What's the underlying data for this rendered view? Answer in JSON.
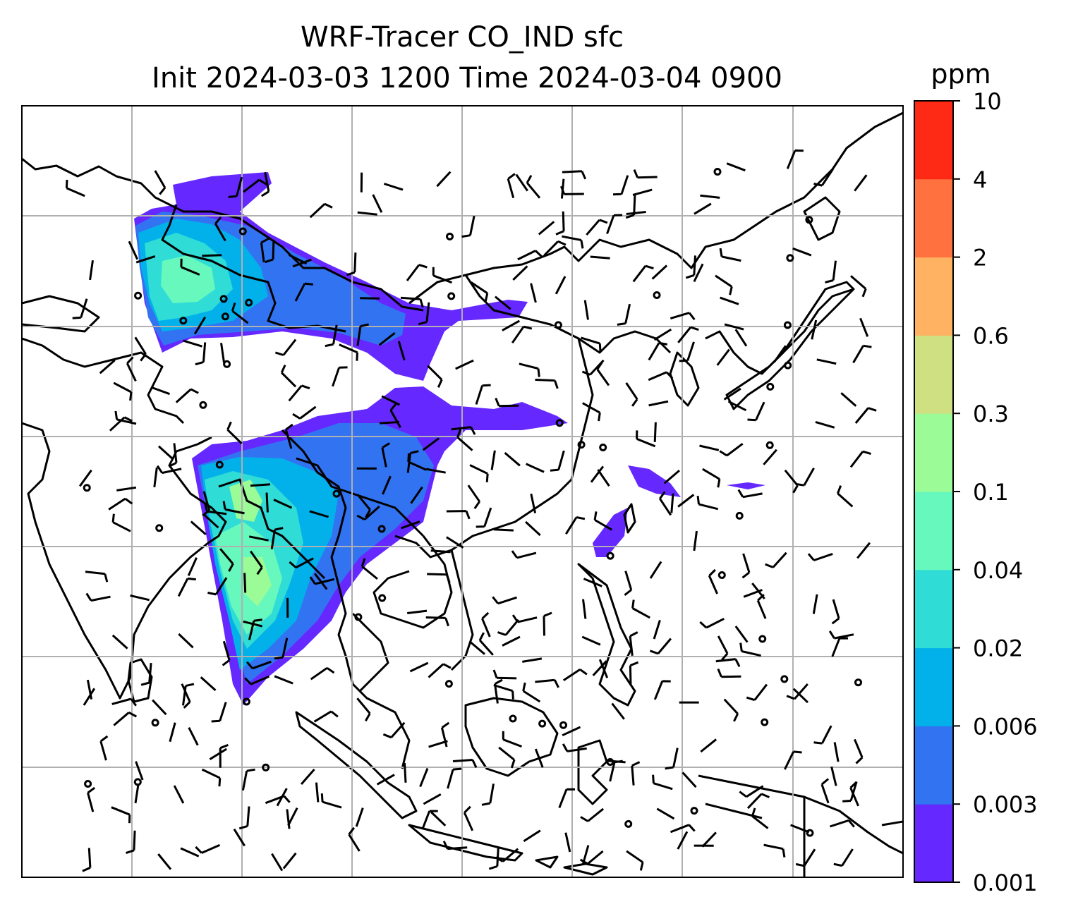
{
  "title": {
    "line1": "WRF-Tracer CO_IND sfc",
    "line2": "Init 2024-03-03 1200 Time 2024-03-04 0900"
  },
  "colorbar": {
    "unit": "ppm",
    "levels": [
      "0.001",
      "0.003",
      "0.006",
      "0.02",
      "0.04",
      "0.1",
      "0.3",
      "0.6",
      "2",
      "4",
      "10"
    ],
    "colors": [
      "#6528ff",
      "#3273f2",
      "#02b1ea",
      "#2fdcd6",
      "#67f8bd",
      "#9afb97",
      "#cfe083",
      "#ffb262",
      "#ff713e",
      "#ff2a16"
    ]
  },
  "map": {
    "gridlines": true,
    "features": [
      "coastlines",
      "country-borders",
      "wind-barbs",
      "calm-wind-circles"
    ],
    "colors": {
      "gridline": "#b0b0b0",
      "coastline": "#000000",
      "background": "#ffffff"
    }
  }
}
